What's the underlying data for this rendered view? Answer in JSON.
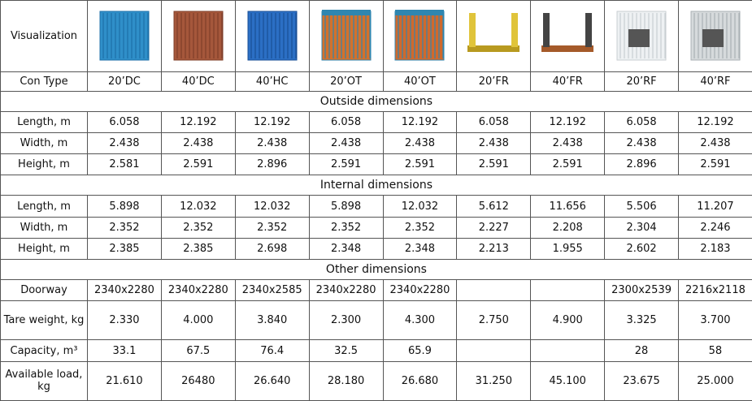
{
  "header": {
    "visualization": "Visualization",
    "con_type_label": "Con Type",
    "types": [
      "20’DC",
      "40’DC",
      "40’HC",
      "20’OT",
      "40’OT",
      "20’FR",
      "40’FR",
      "20’RF",
      "40’RF"
    ]
  },
  "sections": [
    {
      "title": "Outside dimensions",
      "rows": [
        {
          "label": "Length, m",
          "values": [
            "6.058",
            "12.192",
            "12.192",
            "6.058",
            "12.192",
            "6.058",
            "12.192",
            "6.058",
            "12.192"
          ]
        },
        {
          "label": "Width, m",
          "values": [
            "2.438",
            "2.438",
            "2.438",
            "2.438",
            "2.438",
            "2.438",
            "2.438",
            "2.438",
            "2.438"
          ]
        },
        {
          "label": "Height, m",
          "values": [
            "2.581",
            "2.591",
            "2.896",
            "2.591",
            "2.591",
            "2.591",
            "2.591",
            "2.896",
            "2.591"
          ]
        }
      ]
    },
    {
      "title": "Internal dimensions",
      "rows": [
        {
          "label": "Length, m",
          "values": [
            "5.898",
            "12.032",
            "12.032",
            "5.898",
            "12.032",
            "5.612",
            "11.656",
            "5.506",
            "11.207"
          ]
        },
        {
          "label": "Width, m",
          "values": [
            "2.352",
            "2.352",
            "2.352",
            "2.352",
            "2.352",
            "2.227",
            "2.208",
            "2.304",
            "2.246"
          ]
        },
        {
          "label": "Height, m",
          "values": [
            "2.385",
            "2.385",
            "2.698",
            "2.348",
            "2.348",
            "2.213",
            "1.955",
            "2.602",
            "2.183"
          ]
        }
      ]
    },
    {
      "title": "Other dimensions",
      "rows": [
        {
          "label": "Doorway",
          "values": [
            "2340x2280",
            "2340x2280",
            "2340x2585",
            "2340x2280",
            "2340x2280",
            null,
            null,
            "2300x2539",
            "2216x2118"
          ]
        },
        {
          "label": "Tare weight, kg",
          "values": [
            "2.330",
            "4.000",
            "3.840",
            "2.300",
            "4.300",
            "2.750",
            "4.900",
            "3.325",
            "3.700"
          ]
        },
        {
          "label": "Capacity, m³",
          "values": [
            "33.1",
            "67.5",
            "76.4",
            "32.5",
            "65.9",
            null,
            null,
            "28",
            "58"
          ]
        },
        {
          "label": "Available load, kg",
          "values": [
            "21.610",
            "26480",
            "26.640",
            "28.180",
            "26.680",
            "31.250",
            "45.100",
            "23.675",
            "25.000"
          ]
        }
      ]
    }
  ]
}
